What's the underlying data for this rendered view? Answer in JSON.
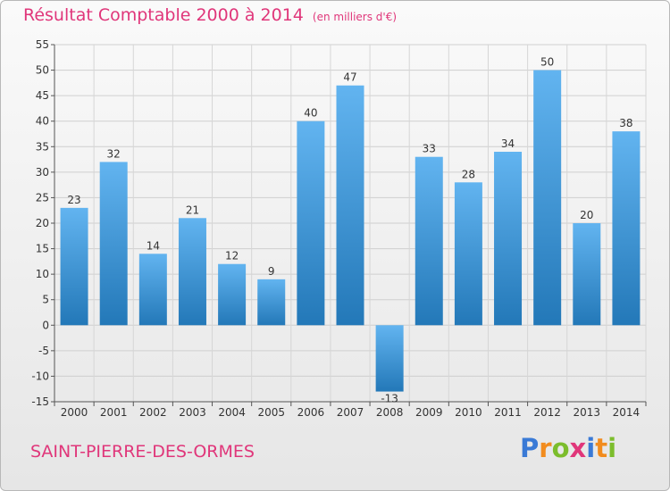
{
  "title": "Résultat Comptable 2000 à 2014",
  "subtitle": "(en milliers d'€)",
  "commune": "SAINT-PIERRE-DES-ORMES",
  "logo": {
    "letters": [
      "P",
      "r",
      "o",
      "x",
      "i",
      "t",
      "i"
    ],
    "colors": [
      "#3a7ad6",
      "#f28c1e",
      "#7cbd2c",
      "#e0367a",
      "#3a7ad6",
      "#f28c1e",
      "#7cbd2c"
    ]
  },
  "colors": {
    "bar_top": "#62b4f0",
    "bar_bottom": "#2378b8",
    "accent": "#e0367a"
  },
  "chart_data": {
    "type": "bar",
    "categories": [
      "2000",
      "2001",
      "2002",
      "2003",
      "2004",
      "2005",
      "2006",
      "2007",
      "2008",
      "2009",
      "2010",
      "2011",
      "2012",
      "2013",
      "2014"
    ],
    "values": [
      23,
      32,
      14,
      21,
      12,
      9,
      40,
      47,
      -13,
      33,
      28,
      34,
      50,
      20,
      38
    ],
    "value_labels": [
      "23",
      "32",
      "14",
      "21",
      "12",
      "9",
      "40",
      "47",
      "-13",
      "33",
      "28",
      "34",
      "50",
      "20",
      "38"
    ],
    "ylim": [
      -15,
      55
    ],
    "yticks": [
      -15,
      -10,
      -5,
      0,
      5,
      10,
      15,
      20,
      25,
      30,
      35,
      40,
      45,
      50,
      55
    ],
    "ytick_labels": [
      "-15",
      "-10",
      "-5",
      "0",
      "5",
      "10",
      "15",
      "20",
      "25",
      "30",
      "35",
      "40",
      "45",
      "50",
      "55"
    ],
    "grid": true,
    "legend": "none"
  }
}
